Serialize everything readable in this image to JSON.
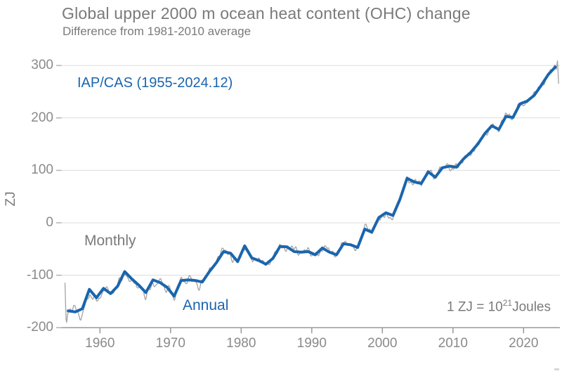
{
  "header": {
    "title": "Global upper 2000 m ocean heat content (OHC) change",
    "subtitle": "Difference from 1981-2010 average"
  },
  "annotations": {
    "legend_label": "IAP/CAS (1955-2024.12)",
    "monthly_label": "Monthly",
    "annual_label": "Annual",
    "zj_note": {
      "prefix": "1 ZJ =  10",
      "exp": "21",
      "suffix": "Joules"
    }
  },
  "colors": {
    "annual_line": "#1a65ae",
    "monthly_line": "#a3a3a3",
    "grid": "#dcdcdc",
    "axis": "#999999",
    "text_gray": "#7a7a7a",
    "tick_text": "#8a8a8a"
  },
  "chart_data": {
    "type": "line",
    "title": "Global upper 2000 m ocean heat content (OHC) change",
    "subtitle": "Difference from 1981-2010 average",
    "xlabel": "",
    "ylabel": "ZJ",
    "unit_note": "1 ZJ = 10^21 Joules",
    "xlim": [
      1955,
      2025.5
    ],
    "ylim": [
      -210,
      320
    ],
    "x_ticks": [
      1960,
      1970,
      1980,
      1990,
      2000,
      2010,
      2020
    ],
    "y_ticks": [
      300,
      200,
      100,
      0,
      -100,
      -200
    ],
    "gridlines_at": [
      300,
      200,
      100,
      0,
      -100
    ],
    "grid": true,
    "legend_position": "top-left-inside",
    "series": [
      {
        "name": "Annual",
        "color": "#1a65ae",
        "start_year": 1955,
        "values": [
          -168,
          -170,
          -164,
          -127,
          -143,
          -125,
          -135,
          -121,
          -93,
          -107,
          -119,
          -133,
          -109,
          -114,
          -123,
          -140,
          -110,
          -109,
          -110,
          -113,
          -93,
          -76,
          -55,
          -58,
          -74,
          -44,
          -67,
          -72,
          -79,
          -68,
          -45,
          -46,
          -55,
          -56,
          -55,
          -61,
          -48,
          -56,
          -61,
          -40,
          -42,
          -47,
          -12,
          -18,
          10,
          19,
          14,
          45,
          85,
          78,
          75,
          97,
          87,
          105,
          108,
          106,
          122,
          134,
          150,
          170,
          185,
          178,
          203,
          201,
          227,
          232,
          243,
          262,
          283,
          297
        ]
      },
      {
        "name": "Monthly",
        "color": "#a3a3a3",
        "derived_from": "Annual",
        "span": "1955.01-2024.12",
        "noise": {
          "seed": 12,
          "amp_eras": [
            [
              1959,
              16
            ],
            [
              1975,
              12
            ],
            [
              1995,
              9
            ],
            [
              2026,
              7
            ]
          ],
          "start_months": [
            -115,
            -152,
            -185,
            -190,
            -179,
            -172
          ],
          "end_months": [
            300,
            309,
            291,
            266
          ]
        }
      }
    ]
  }
}
